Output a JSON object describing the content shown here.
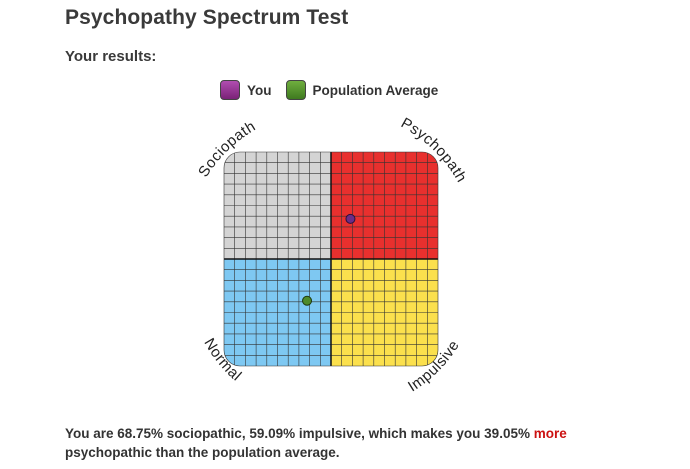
{
  "title": "Psychopathy Spectrum Test",
  "subtitle": "Your results:",
  "legend": [
    {
      "label": "You",
      "color": "#8e2b8e",
      "icon": "you-swatch-icon"
    },
    {
      "label": "Population Average",
      "color": "#4e8a2a",
      "icon": "population-swatch-icon"
    }
  ],
  "quadrants": {
    "top_left": {
      "label": "Sociopath",
      "color": "#d4d4d4"
    },
    "top_right": {
      "label": "Psychopath",
      "color": "#e8302e"
    },
    "bottom_left": {
      "label": "Normal",
      "color": "#7ec8f2"
    },
    "bottom_right": {
      "label": "Impulsive",
      "color": "#fbe04d"
    }
  },
  "markers": {
    "you": {
      "sociopathic_pct": 68.75,
      "impulsive_pct": 59.09,
      "color": "#6a2d88"
    },
    "population": {
      "sociopathic_pct": 30.5,
      "impulsive_pct": 38.8,
      "color": "#4e8a2a"
    }
  },
  "result": {
    "text_before": "You are 68.75% sociopathic, 59.09% impulsive, which makes you 39.05%",
    "highlight": "more",
    "text_after": "psychopathic than the population average."
  }
}
